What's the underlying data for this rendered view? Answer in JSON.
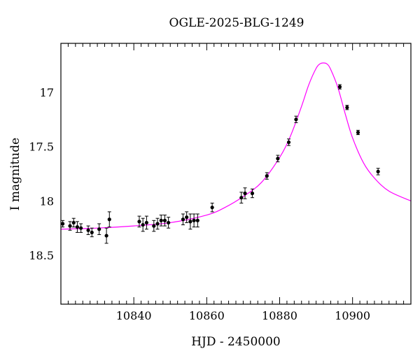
{
  "chart_data": {
    "type": "scatter",
    "title": "OGLE-2025-BLG-1249",
    "xlabel": "HJD - 2450000",
    "ylabel": "I magnitude",
    "xlim": [
      10820,
      10916
    ],
    "ylim": [
      18.95,
      16.55
    ],
    "y_inverted": true,
    "x_ticks": [
      10840,
      10860,
      10880,
      10900
    ],
    "y_ticks": [
      17,
      17.5,
      18,
      18.5
    ],
    "x_tick_labels": [
      "10840",
      "10860",
      "10880",
      "10900"
    ],
    "y_tick_labels": [
      "17",
      "17.5",
      "18",
      "18.5"
    ],
    "grid": false,
    "colors": {
      "model": "#ff00ff",
      "points": "#000000",
      "axes": "#000000"
    },
    "model": {
      "name": "",
      "x": [
        10820,
        10830,
        10840,
        10850,
        10860,
        10865,
        10870,
        10875,
        10880,
        10883,
        10886,
        10888,
        10890,
        10891,
        10892,
        10893,
        10894,
        10896,
        10898,
        10900,
        10903,
        10906,
        10910,
        10916
      ],
      "y": [
        18.26,
        18.25,
        18.23,
        18.2,
        18.13,
        18.06,
        17.96,
        17.83,
        17.6,
        17.4,
        17.13,
        16.93,
        16.78,
        16.74,
        16.73,
        16.74,
        16.79,
        16.96,
        17.2,
        17.42,
        17.65,
        17.79,
        17.91,
        18.0
      ]
    },
    "series": [
      {
        "x": [
          10820.5,
          10822.5,
          10823.5,
          10824.5,
          10825.5,
          10827.5,
          10828.5,
          10830.5,
          10832.5,
          10833.3,
          10841.5,
          10842.5,
          10843.5,
          10845.5,
          10846.5,
          10847.5,
          10848.5,
          10849.5,
          10853.5,
          10854.5,
          10855.5,
          10856.5,
          10857.5,
          10861.5,
          10869.5,
          10870.5,
          10872.5,
          10876.5,
          10879.5,
          10882.5,
          10884.5,
          10896.5,
          10898.5,
          10901.5,
          10907.0
        ],
        "y": [
          18.21,
          18.23,
          18.2,
          18.24,
          18.25,
          18.27,
          18.29,
          18.26,
          18.32,
          18.17,
          18.19,
          18.22,
          18.2,
          18.23,
          18.21,
          18.18,
          18.18,
          18.2,
          18.17,
          18.15,
          18.19,
          18.18,
          18.18,
          18.06,
          17.97,
          17.93,
          17.93,
          17.77,
          17.61,
          17.46,
          17.25,
          16.95,
          17.14,
          17.37,
          17.73
        ],
        "err": [
          0.03,
          0.04,
          0.04,
          0.05,
          0.04,
          0.04,
          0.04,
          0.05,
          0.07,
          0.07,
          0.05,
          0.06,
          0.06,
          0.05,
          0.05,
          0.05,
          0.05,
          0.05,
          0.05,
          0.05,
          0.07,
          0.06,
          0.06,
          0.04,
          0.05,
          0.05,
          0.04,
          0.03,
          0.03,
          0.03,
          0.03,
          0.02,
          0.02,
          0.02,
          0.03
        ]
      }
    ]
  }
}
